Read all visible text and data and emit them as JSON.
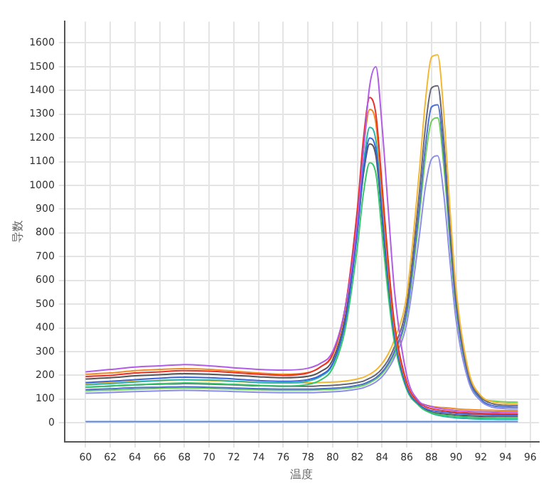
{
  "chart_data": {
    "type": "line",
    "xlabel": "温度",
    "ylabel": "导数",
    "x": [
      60,
      62,
      64,
      66,
      68,
      70,
      72,
      74,
      76,
      78,
      79,
      80,
      81,
      82,
      82.5,
      83,
      83.5,
      84,
      84.5,
      85,
      86,
      87,
      87.5,
      88,
      88.5,
      89,
      89.5,
      90,
      91,
      92,
      93,
      94,
      95
    ],
    "series": [
      {
        "color": "#b05ce6",
        "values": [
          215,
          225,
          235,
          240,
          245,
          240,
          232,
          225,
          222,
          230,
          250,
          300,
          480,
          850,
          1150,
          1420,
          1500,
          1250,
          900,
          560,
          200,
          90,
          75,
          68,
          62,
          58,
          55,
          52,
          49,
          47,
          46,
          45,
          45
        ]
      },
      {
        "color": "#e8322a",
        "values": [
          195,
          200,
          210,
          215,
          220,
          218,
          212,
          205,
          200,
          210,
          235,
          290,
          480,
          900,
          1200,
          1370,
          1300,
          1000,
          680,
          420,
          170,
          85,
          68,
          60,
          55,
          51,
          48,
          45,
          42,
          40,
          39,
          38,
          38
        ]
      },
      {
        "color": "#f08a24",
        "values": [
          205,
          210,
          220,
          225,
          228,
          225,
          218,
          210,
          205,
          212,
          235,
          285,
          470,
          880,
          1160,
          1320,
          1260,
          960,
          650,
          400,
          165,
          85,
          76,
          70,
          66,
          64,
          62,
          59,
          56,
          54,
          53,
          52,
          52
        ]
      },
      {
        "color": "#3a62d8",
        "values": [
          170,
          175,
          182,
          188,
          192,
          190,
          185,
          178,
          175,
          182,
          200,
          250,
          420,
          800,
          1060,
          1200,
          1150,
          880,
          600,
          370,
          150,
          78,
          60,
          52,
          48,
          45,
          43,
          40,
          37,
          35,
          34,
          34,
          34
        ]
      },
      {
        "color": "#34c76a",
        "values": [
          150,
          155,
          160,
          165,
          168,
          166,
          162,
          158,
          155,
          162,
          180,
          230,
          390,
          740,
          970,
          1095,
          1050,
          800,
          540,
          340,
          140,
          72,
          52,
          42,
          36,
          32,
          30,
          27,
          24,
          22,
          21,
          20,
          20
        ]
      },
      {
        "color": "#555555",
        "values": [
          185,
          190,
          198,
          203,
          207,
          205,
          200,
          194,
          190,
          196,
          215,
          265,
          440,
          820,
          1050,
          1175,
          1125,
          860,
          580,
          360,
          148,
          76,
          56,
          46,
          41,
          38,
          36,
          33,
          30,
          28,
          27,
          27,
          27
        ]
      },
      {
        "color": "#2bb5a8",
        "values": [
          160,
          165,
          172,
          178,
          182,
          180,
          176,
          170,
          168,
          176,
          195,
          245,
          420,
          830,
          1090,
          1245,
          1190,
          910,
          620,
          385,
          155,
          80,
          55,
          40,
          32,
          27,
          24,
          21,
          18,
          16,
          15,
          14,
          14
        ]
      },
      {
        "color": "#f5b731",
        "values": [
          165,
          170,
          175,
          178,
          180,
          178,
          174,
          170,
          168,
          168,
          170,
          172,
          176,
          185,
          192,
          205,
          222,
          250,
          290,
          350,
          540,
          1050,
          1350,
          1540,
          1550,
          1300,
          900,
          560,
          220,
          115,
          88,
          82,
          80
        ]
      },
      {
        "color": "#666677",
        "values": [
          150,
          155,
          160,
          163,
          165,
          163,
          160,
          156,
          154,
          154,
          156,
          158,
          162,
          170,
          176,
          188,
          203,
          228,
          265,
          320,
          500,
          960,
          1240,
          1410,
          1420,
          1190,
          830,
          520,
          205,
          108,
          80,
          74,
          73
        ]
      },
      {
        "color": "#4a6fd0",
        "values": [
          140,
          144,
          148,
          150,
          152,
          150,
          147,
          144,
          142,
          142,
          144,
          146,
          150,
          158,
          164,
          175,
          190,
          214,
          250,
          300,
          470,
          900,
          1160,
          1330,
          1340,
          1130,
          790,
          495,
          195,
          100,
          72,
          67,
          66
        ]
      },
      {
        "color": "#8a8ee8",
        "values": [
          125,
          128,
          132,
          135,
          137,
          135,
          132,
          129,
          127,
          127,
          129,
          131,
          135,
          142,
          148,
          158,
          172,
          194,
          228,
          275,
          420,
          780,
          990,
          1110,
          1125,
          960,
          680,
          430,
          175,
          92,
          65,
          60,
          59
        ]
      },
      {
        "color": "#6fcf5a",
        "values": [
          135,
          138,
          142,
          145,
          147,
          145,
          142,
          139,
          137,
          137,
          139,
          141,
          145,
          152,
          158,
          169,
          184,
          207,
          242,
          290,
          455,
          860,
          1110,
          1270,
          1285,
          1080,
          760,
          475,
          190,
          104,
          92,
          88,
          87
        ]
      },
      {
        "color": "#5a86e0",
        "values": [
          5,
          5,
          5,
          5,
          5,
          5,
          5,
          5,
          5,
          5,
          5,
          5,
          5,
          5,
          5,
          5,
          5,
          5,
          5,
          5,
          5,
          5,
          5,
          5,
          5,
          5,
          5,
          5,
          5,
          5,
          5,
          5,
          5
        ]
      }
    ],
    "xlim": [
      58.3,
      96.7
    ],
    "xticks": [
      60,
      62,
      64,
      66,
      68,
      70,
      72,
      74,
      76,
      78,
      80,
      82,
      84,
      86,
      88,
      90,
      92,
      94,
      96
    ],
    "ylim": [
      -80,
      1690
    ],
    "yticks": [
      0,
      100,
      200,
      300,
      400,
      500,
      600,
      700,
      800,
      900,
      1000,
      1100,
      1200,
      1300,
      1400,
      1500,
      1600
    ],
    "grid": true,
    "legend": false,
    "marker": "none",
    "line_style": "solid"
  }
}
